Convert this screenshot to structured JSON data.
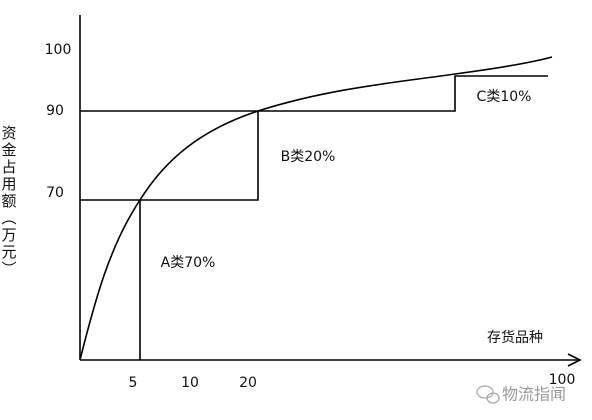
{
  "y_axis": {
    "label": "资金占用额（万元）",
    "ticks": [
      100,
      90,
      70
    ]
  },
  "x_axis": {
    "label": "存货品种",
    "ticks": [
      5,
      10,
      20,
      100
    ]
  },
  "regions": [
    "A类70%",
    "B类20%",
    "C类10%"
  ],
  "watermark": "物流指闻"
}
